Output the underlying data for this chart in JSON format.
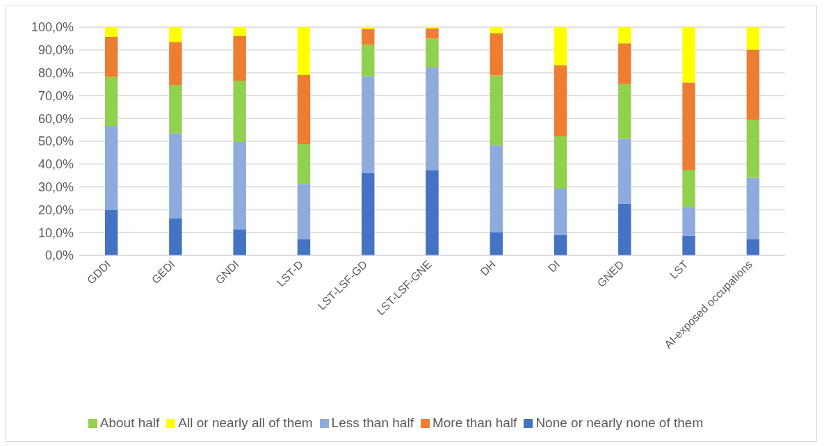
{
  "chart_data": {
    "type": "bar",
    "stacked": true,
    "grid": "y",
    "legend": "bottom",
    "categories": [
      "GDDI",
      "GEDI",
      "GNDI",
      "LST-D",
      "LST-LSF-GD",
      "LST-LSF-GNE",
      "DH",
      "DI",
      "GNED",
      "LST",
      "AI-exposed  occupations"
    ],
    "ylim": [
      0,
      100
    ],
    "yticks": [
      {
        "value": 0,
        "label": "0,0%"
      },
      {
        "value": 10,
        "label": "10,0%"
      },
      {
        "value": 20,
        "label": "20,0%"
      },
      {
        "value": 30,
        "label": "30,0%"
      },
      {
        "value": 40,
        "label": "40,0%"
      },
      {
        "value": 50,
        "label": "50,0%"
      },
      {
        "value": 60,
        "label": "60,0%"
      },
      {
        "value": 70,
        "label": "70,0%"
      },
      {
        "value": 80,
        "label": "80,0%"
      },
      {
        "value": 90,
        "label": "90,0%"
      },
      {
        "value": 100,
        "label": "100,0%"
      }
    ],
    "series": [
      {
        "name": "None or nearly none of them",
        "color": "#4472c4",
        "values": [
          20.0,
          16.3,
          11.3,
          7.0,
          36.0,
          37.2,
          10.1,
          9.0,
          22.7,
          8.6,
          7.0
        ]
      },
      {
        "name": "Less than half",
        "color": "#8faadc",
        "values": [
          36.7,
          37.2,
          38.4,
          24.2,
          42.5,
          45.1,
          38.2,
          20.3,
          28.4,
          12.5,
          27.0
        ]
      },
      {
        "name": "About half",
        "color": "#92d050",
        "values": [
          21.5,
          21.2,
          26.8,
          17.6,
          13.8,
          12.7,
          30.5,
          22.8,
          24.0,
          16.4,
          25.3
        ]
      },
      {
        "name": "More than half",
        "color": "#ed7d31",
        "values": [
          17.6,
          18.8,
          19.6,
          30.2,
          6.8,
          4.4,
          18.5,
          31.2,
          17.8,
          38.3,
          30.8
        ]
      },
      {
        "name": "All or nearly all of them",
        "color": "#ffff00",
        "values": [
          4.2,
          6.5,
          3.9,
          21.0,
          0.9,
          0.6,
          2.7,
          16.7,
          7.1,
          24.2,
          9.9
        ]
      }
    ]
  }
}
